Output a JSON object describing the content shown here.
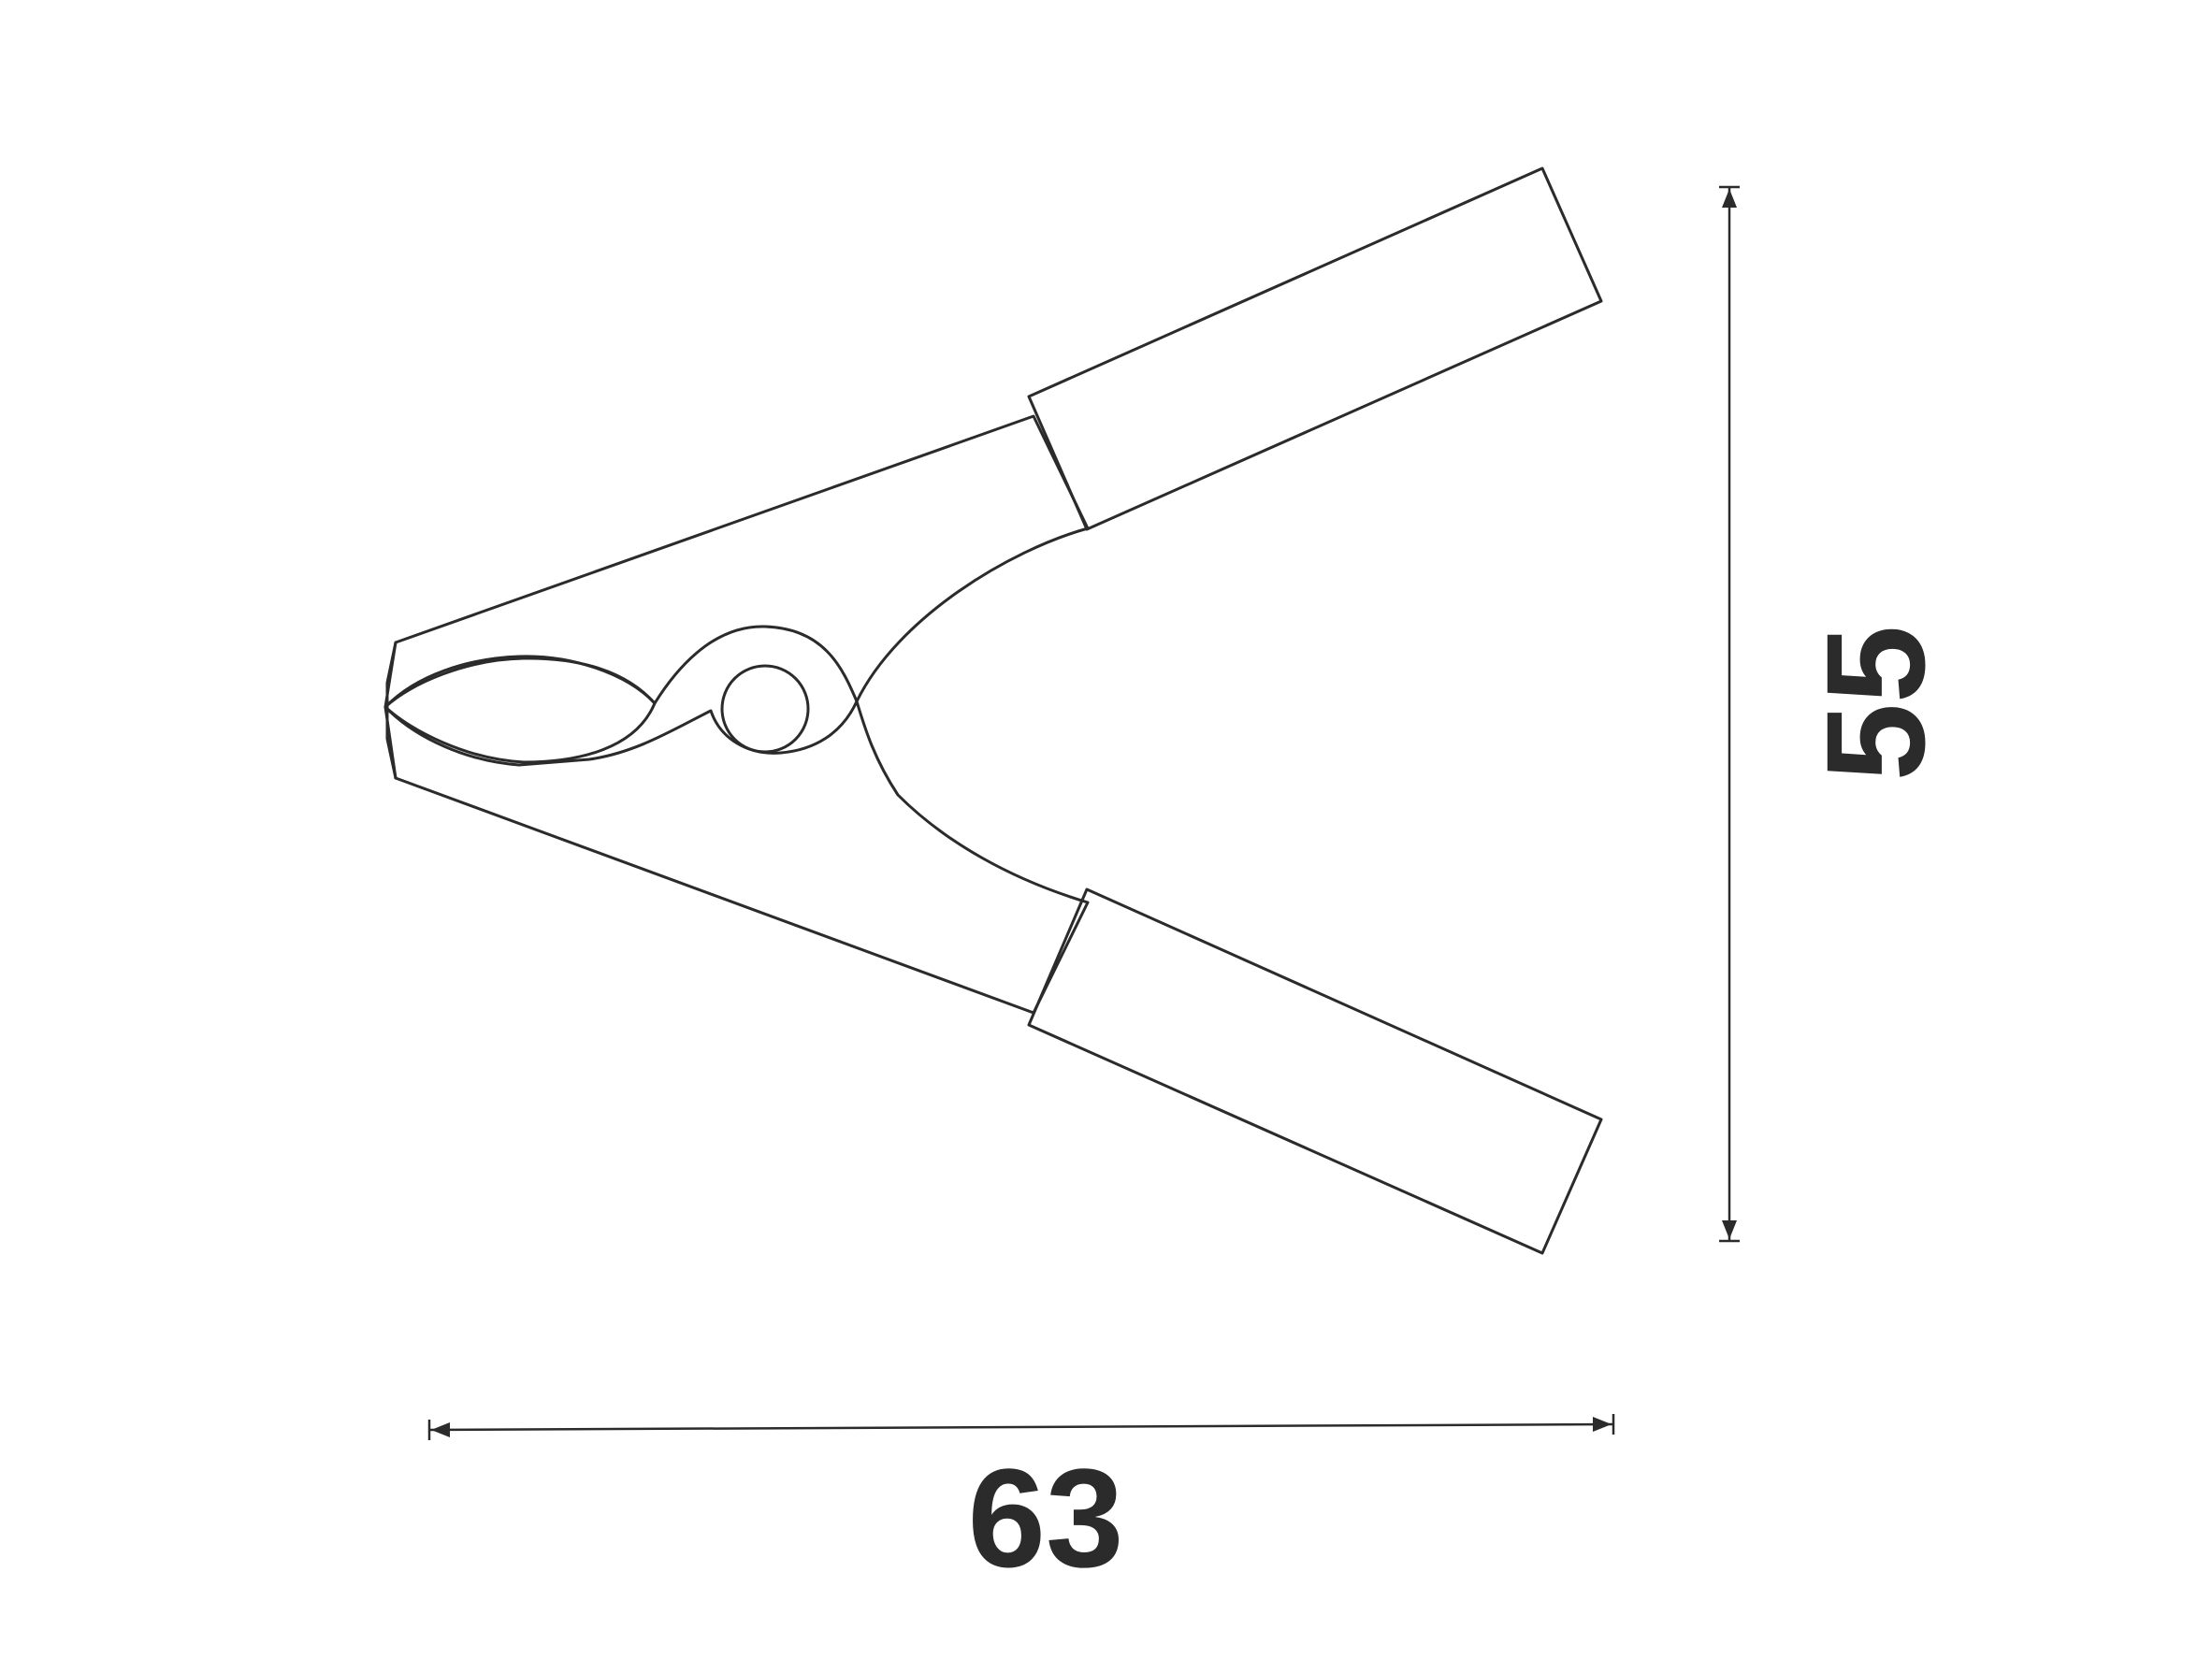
{
  "dimensions": {
    "width_label": "63",
    "height_label": "55"
  },
  "colors": {
    "line": "#2b2b2b",
    "background": "#ffffff"
  }
}
